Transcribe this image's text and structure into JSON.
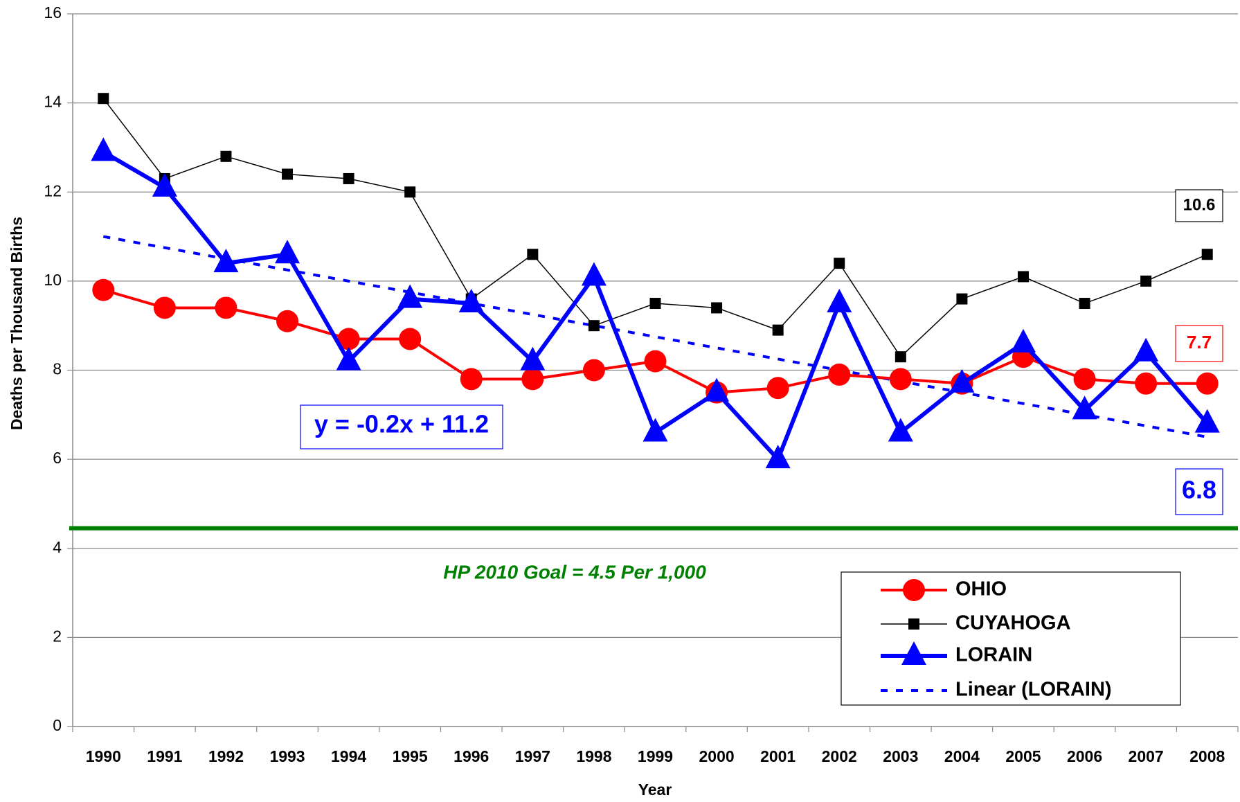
{
  "chart_data": {
    "type": "line",
    "x_label": "Year",
    "y_label": "Deaths per Thousand Births",
    "categories": [
      "1990",
      "1991",
      "1992",
      "1993",
      "1994",
      "1995",
      "1996",
      "1997",
      "1998",
      "1999",
      "2000",
      "2001",
      "2002",
      "2003",
      "2004",
      "2005",
      "2006",
      "2007",
      "2008"
    ],
    "series": [
      {
        "name": "OHIO",
        "color": "#ff0000",
        "marker": "circle",
        "width": 4,
        "values": [
          9.8,
          9.4,
          9.4,
          9.1,
          8.7,
          8.7,
          7.8,
          7.8,
          8.0,
          8.2,
          7.5,
          7.6,
          7.9,
          7.8,
          7.7,
          8.3,
          7.8,
          7.7,
          7.7
        ]
      },
      {
        "name": "CUYAHOGA",
        "color": "#000000",
        "marker": "square",
        "width": 1.5,
        "values": [
          14.1,
          12.3,
          12.8,
          12.4,
          12.3,
          12.0,
          9.6,
          10.6,
          9.0,
          9.5,
          9.4,
          8.9,
          10.4,
          8.3,
          9.6,
          10.1,
          9.5,
          10.0,
          10.6
        ]
      },
      {
        "name": "LORAIN",
        "color": "#0000ff",
        "marker": "triangle",
        "width": 6,
        "values": [
          12.9,
          12.1,
          10.4,
          10.6,
          8.2,
          9.6,
          9.5,
          8.2,
          10.1,
          6.6,
          7.5,
          6.0,
          9.5,
          6.6,
          7.7,
          8.6,
          7.1,
          8.4,
          6.8
        ]
      },
      {
        "name": "Linear (LORAIN)",
        "color": "#0000ff",
        "marker": "none",
        "width": 4,
        "dashed": true,
        "values": [
          11.0,
          10.75,
          10.5,
          10.25,
          10.0,
          9.75,
          9.5,
          9.25,
          9.0,
          8.75,
          8.5,
          8.25,
          8.0,
          7.75,
          7.5,
          7.25,
          7.0,
          6.75,
          6.5
        ]
      }
    ],
    "ylim": [
      0,
      16
    ],
    "yticks": [
      0,
      2,
      4,
      6,
      8,
      10,
      12,
      14,
      16
    ],
    "grid": true,
    "goal": {
      "value": 4.45,
      "label": "HP 2010 Goal = 4.5 Per 1,000",
      "color": "#008000"
    },
    "equation": "y = -0.2x + 11.2",
    "legend": "lower right"
  }
}
